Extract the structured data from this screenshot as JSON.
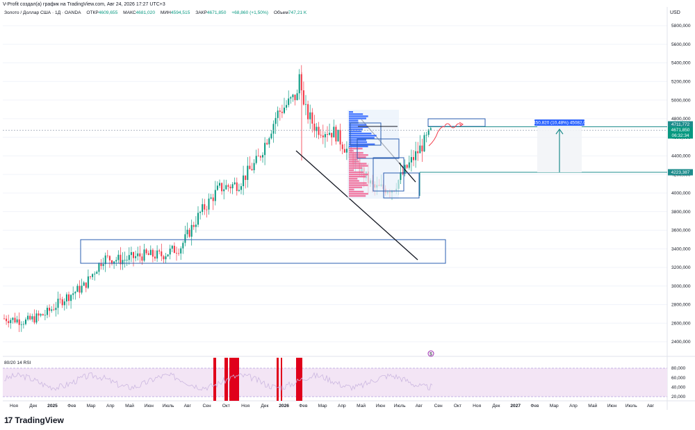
{
  "header": {
    "attribution": "V-Profit создал(а) график на TradingView.com, Авг 24, 2026 17:27 UTC+3",
    "symbol": "Золото / Доллар США · 1Д · OANDA",
    "open_label": "ОТКР",
    "open_value": "4609,655",
    "high_label": "МАКС",
    "high_value": "4681,020",
    "low_label": "МИН",
    "low_value": "4594,515",
    "close_label": "ЗАКР",
    "close_value": "4671,850",
    "change": "+68,860 (+1,50%)",
    "volume_label": "Объем",
    "volume_value": "747,21 K",
    "currency": "USD"
  },
  "colors": {
    "up": "#089981",
    "down": "#f23645",
    "box": "#2a5db0",
    "teal": "#1e8c8c",
    "rsi_fill": "#f3e5f5",
    "rsi_line": "#cbb7e0",
    "rsi_alert": "#e0001b",
    "profile_blue": "#2962ff",
    "profile_pink": "#f06292"
  },
  "chart_data": [
    {
      "type": "candlestick",
      "title": "Золото / Доллар США · 1Д · OANDA",
      "x_ticks": [
        "Ноя",
        "Дек",
        "2025",
        "Фев",
        "Мар",
        "Апр",
        "Май",
        "Июн",
        "Июль",
        "Авг",
        "Сен",
        "Окт",
        "Ноя",
        "Дек",
        "2026",
        "Фев",
        "Мар",
        "Апр",
        "Май",
        "Июн",
        "Июль",
        "Авг",
        "Сен",
        "Окт",
        "Ноя",
        "Дек",
        "2027",
        "Фев",
        "Мар",
        "Апр",
        "Май",
        "Июн",
        "Июль",
        "Авг"
      ],
      "y_ticks": [
        "5800,000",
        "5600,000",
        "5400,000",
        "5200,000",
        "5000,000",
        "4800,000",
        "4600,000",
        "4400,000",
        "4200,000",
        "4000,000",
        "3800,000",
        "3600,000",
        "3400,000",
        "3200,000",
        "3000,000",
        "2800,000",
        "2600,000",
        "2400,000"
      ],
      "ylim": [
        2320,
        5820
      ],
      "series": [
        {
          "x": [
            "2024-11",
            "2024-12",
            "2025-01",
            "2025-02",
            "2025-03",
            "2025-04",
            "2025-05",
            "2025-06",
            "2025-07",
            "2025-08",
            "2025-09",
            "2025-10",
            "2025-11",
            "2025-12",
            "2026-01",
            "2026-02",
            "2026-03",
            "2026-04",
            "2026-05",
            "2026-06",
            "2026-07",
            "2026-08"
          ],
          "values": [
            2650,
            2620,
            2700,
            2870,
            3000,
            3300,
            3280,
            3330,
            3330,
            3420,
            3780,
            4050,
            4100,
            4350,
            4850,
            5050,
            4700,
            4650,
            4350,
            4050,
            4050,
            4671.85
          ]
        }
      ],
      "annotations": {
        "price_tags": [
          {
            "label": "4711,772",
            "price": 4711.772,
            "color": "#1e8c8c"
          },
          {
            "label": "4671,850",
            "price": 4671.85,
            "color": "#089981"
          },
          {
            "label": "06:32:34",
            "price": 4640,
            "color": "#089981"
          },
          {
            "label": "4223,387",
            "price": 4223.387,
            "color": "#1e8c8c"
          }
        ],
        "measure_label": "450,820 (10,48%) 45082,0",
        "event_marker": "$"
      }
    },
    {
      "type": "line",
      "title": "80/20 14 RSI",
      "y_ticks": [
        "80,000",
        "60,000",
        "40,000",
        "20,000"
      ],
      "ylim": [
        15,
        85
      ],
      "bands": [
        20,
        80
      ]
    }
  ],
  "rsi": {
    "label": "80/20 14 RSI"
  },
  "brand": {
    "name": "TradingView",
    "logo": "17"
  }
}
